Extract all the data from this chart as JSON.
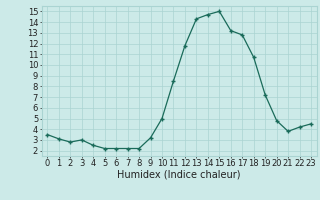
{
  "x": [
    0,
    1,
    2,
    3,
    4,
    5,
    6,
    7,
    8,
    9,
    10,
    11,
    12,
    13,
    14,
    15,
    16,
    17,
    18,
    19,
    20,
    21,
    22,
    23
  ],
  "y": [
    3.5,
    3.1,
    2.8,
    3.0,
    2.5,
    2.2,
    2.2,
    2.2,
    2.2,
    3.2,
    5.0,
    8.5,
    11.8,
    14.3,
    14.7,
    15.0,
    13.2,
    12.8,
    10.7,
    7.2,
    4.8,
    3.8,
    4.2,
    4.5
  ],
  "xlabel": "Humidex (Indice chaleur)",
  "xlim": [
    -0.5,
    23.5
  ],
  "ylim": [
    1.5,
    15.5
  ],
  "yticks": [
    2,
    3,
    4,
    5,
    6,
    7,
    8,
    9,
    10,
    11,
    12,
    13,
    14,
    15
  ],
  "xticks": [
    0,
    1,
    2,
    3,
    4,
    5,
    6,
    7,
    8,
    9,
    10,
    11,
    12,
    13,
    14,
    15,
    16,
    17,
    18,
    19,
    20,
    21,
    22,
    23
  ],
  "line_color": "#1a6b5a",
  "marker": "+",
  "marker_size": 3,
  "bg_color": "#cceae8",
  "grid_color": "#aad4d2",
  "font_color": "#222222",
  "tick_fontsize": 6.0,
  "xlabel_fontsize": 7.0
}
